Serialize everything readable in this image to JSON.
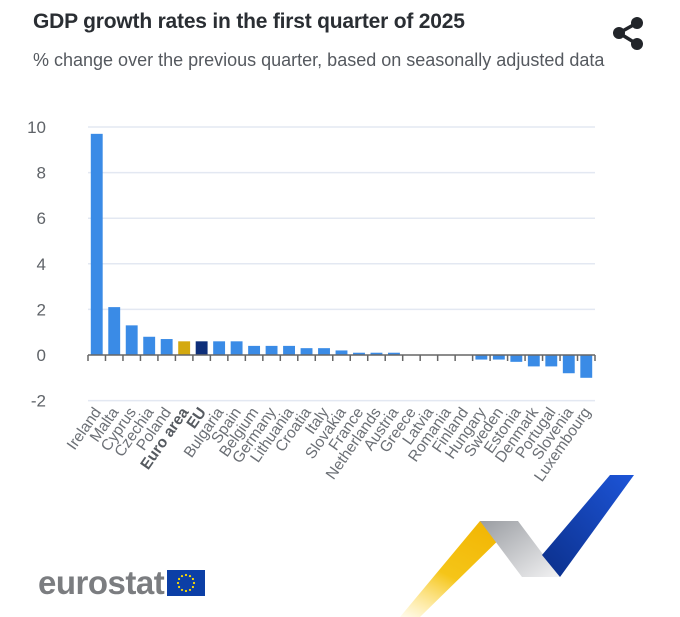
{
  "header": {
    "title": "GDP growth rates in the first quarter of 2025",
    "subtitle": "% change over the previous quarter, based on seasonally adjusted data",
    "share_icon": "share-icon"
  },
  "branding": {
    "logo_text": "eurostat",
    "flag_icon": "eu-flag-icon"
  },
  "colors": {
    "country": "#3a8be6",
    "euro_area": "#d4a90f",
    "eu": "#0e2f7a",
    "grid": "#e3e8f2",
    "axis": "#666666"
  },
  "chart_data": {
    "type": "bar",
    "title": "GDP growth rates in the first quarter of 2025",
    "subtitle": "% change over the previous quarter, based on seasonally adjusted data",
    "xlabel": "",
    "ylabel": "",
    "ylim": [
      -2,
      10
    ],
    "yticks": [
      -2,
      0,
      2,
      4,
      6,
      8,
      10
    ],
    "grid": true,
    "legend": "none",
    "categories": [
      "Ireland",
      "Malta",
      "Cyprus",
      "Czechia",
      "Poland",
      "Euro area",
      "EU",
      "Bulgaria",
      "Spain",
      "Belgium",
      "Germany",
      "Lithuania",
      "Croatia",
      "Italy",
      "Slovakia",
      "France",
      "Netherlands",
      "Austria",
      "Greece",
      "Latvia",
      "Romania",
      "Finland",
      "Hungary",
      "Sweden",
      "Estonia",
      "Denmark",
      "Portugal",
      "Slovenia",
      "Luxembourg"
    ],
    "values": [
      9.7,
      2.1,
      1.3,
      0.8,
      0.7,
      0.6,
      0.6,
      0.6,
      0.6,
      0.4,
      0.4,
      0.4,
      0.3,
      0.3,
      0.2,
      0.1,
      0.1,
      0.1,
      0.0,
      0.0,
      0.0,
      0.0,
      -0.2,
      -0.2,
      -0.3,
      -0.5,
      -0.5,
      -0.8,
      -1.0
    ],
    "highlight": {
      "Euro area": "euro_area",
      "EU": "eu"
    },
    "bold_labels": [
      "Euro area",
      "EU"
    ]
  }
}
